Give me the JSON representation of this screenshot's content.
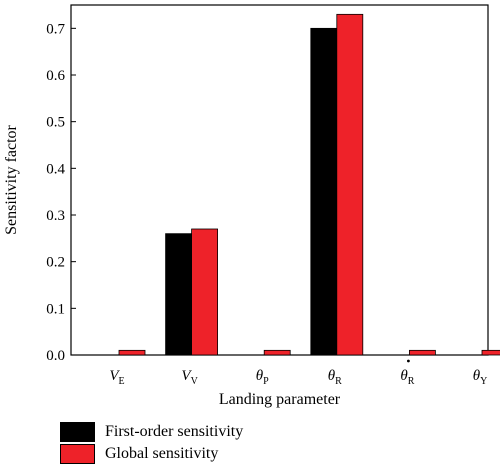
{
  "chart_data": {
    "type": "bar",
    "categories": [
      {
        "main": "V",
        "sub": "E",
        "dot": false
      },
      {
        "main": "V",
        "sub": "V",
        "dot": false
      },
      {
        "main": "θ",
        "sub": "P",
        "dot": false
      },
      {
        "main": "θ",
        "sub": "R",
        "dot": false
      },
      {
        "main": "θ",
        "sub": "R",
        "dot": true
      },
      {
        "main": "θ",
        "sub": "Y",
        "dot": false
      }
    ],
    "series": [
      {
        "name": "First-order sensitivity",
        "color": "#000000",
        "values": [
          0,
          0.26,
          0,
          0.7,
          0,
          0
        ]
      },
      {
        "name": "Global sensitivity",
        "color": "#ee2229",
        "values": [
          0.01,
          0.27,
          0.01,
          0.73,
          0.01,
          0.01
        ]
      }
    ],
    "xlabel": "Landing parameter",
    "ylabel": "Sensitivity factor",
    "ylim": [
      0,
      0.75
    ],
    "yticks": [
      0.0,
      0.1,
      0.2,
      0.3,
      0.4,
      0.5,
      0.6,
      0.7
    ],
    "ytick_labels": [
      "0.0",
      "0.1",
      "0.2",
      "0.3",
      "0.4",
      "0.5",
      "0.6",
      "0.7"
    ],
    "grid": false,
    "legend_position": "bottom-left"
  }
}
